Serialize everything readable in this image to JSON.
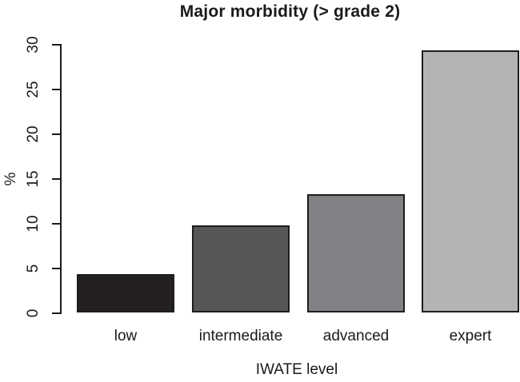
{
  "chart_data": {
    "type": "bar",
    "title": "Major morbidity (> grade 2)",
    "xlabel": "IWATE level",
    "ylabel": "%",
    "categories": [
      "low",
      "intermediate",
      "advanced",
      "expert"
    ],
    "values": [
      4.3,
      9.8,
      13.3,
      29.3
    ],
    "ylim": [
      0,
      30
    ],
    "yticks": [
      0,
      5,
      10,
      15,
      20,
      25,
      30
    ],
    "grid": false,
    "legend": "none",
    "bar_colors": [
      "#242021",
      "#565659",
      "#828286",
      "#b2b4b6"
    ],
    "bar_border_color": "#1d1d1d",
    "axis_color": "#1c1c1c",
    "background": "#ffffff"
  }
}
